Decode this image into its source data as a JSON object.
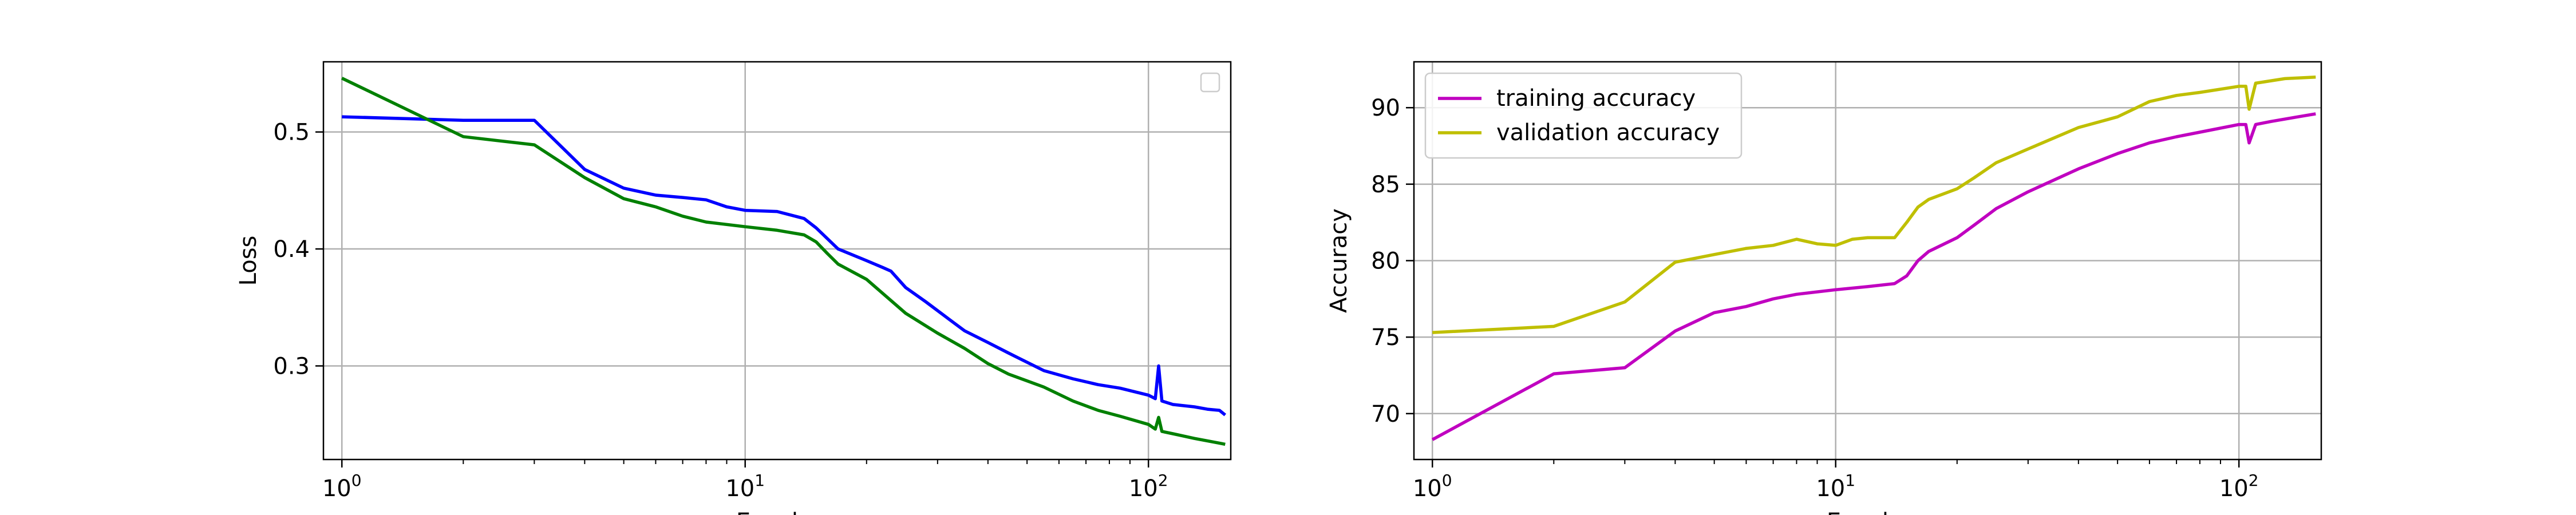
{
  "chart_data": [
    {
      "type": "line",
      "title": "",
      "xlabel": "Epochs",
      "ylabel": "Loss",
      "xscale": "log",
      "xlim": [
        0.9,
        160
      ],
      "ylim": [
        0.22,
        0.56
      ],
      "grid": true,
      "legend": "top-right (empty)",
      "x_ticks": [
        {
          "value": 1,
          "label": "10^0"
        },
        {
          "value": 10,
          "label": "10^1"
        },
        {
          "value": 100,
          "label": "10^2"
        }
      ],
      "y_ticks": [
        {
          "value": 0.3,
          "label": "0.3"
        },
        {
          "value": 0.4,
          "label": "0.4"
        },
        {
          "value": 0.5,
          "label": "0.5"
        }
      ],
      "series": [
        {
          "color": "#0000ff",
          "points": [
            [
              1,
              0.513
            ],
            [
              2,
              0.51
            ],
            [
              3,
              0.51
            ],
            [
              4,
              0.468
            ],
            [
              5,
              0.452
            ],
            [
              6,
              0.446
            ],
            [
              7,
              0.444
            ],
            [
              8,
              0.442
            ],
            [
              9,
              0.436
            ],
            [
              10,
              0.433
            ],
            [
              12,
              0.432
            ],
            [
              14,
              0.426
            ],
            [
              15,
              0.418
            ],
            [
              17,
              0.4
            ],
            [
              20,
              0.39
            ],
            [
              22,
              0.384
            ],
            [
              23,
              0.381
            ],
            [
              25,
              0.367
            ],
            [
              28,
              0.355
            ],
            [
              32,
              0.34
            ],
            [
              35,
              0.33
            ],
            [
              40,
              0.32
            ],
            [
              45,
              0.311
            ],
            [
              55,
              0.296
            ],
            [
              65,
              0.289
            ],
            [
              75,
              0.284
            ],
            [
              85,
              0.281
            ],
            [
              100,
              0.275
            ],
            [
              104,
              0.272
            ],
            [
              106,
              0.3
            ],
            [
              108,
              0.27
            ],
            [
              115,
              0.267
            ],
            [
              130,
              0.265
            ],
            [
              140,
              0.263
            ],
            [
              150,
              0.262
            ],
            [
              155,
              0.258
            ]
          ]
        },
        {
          "color": "#008000",
          "points": [
            [
              1,
              0.546
            ],
            [
              2,
              0.496
            ],
            [
              3,
              0.489
            ],
            [
              4,
              0.461
            ],
            [
              5,
              0.443
            ],
            [
              6,
              0.436
            ],
            [
              7,
              0.428
            ],
            [
              8,
              0.423
            ],
            [
              10,
              0.419
            ],
            [
              12,
              0.416
            ],
            [
              14,
              0.412
            ],
            [
              15,
              0.406
            ],
            [
              16,
              0.396
            ],
            [
              17,
              0.387
            ],
            [
              20,
              0.374
            ],
            [
              25,
              0.345
            ],
            [
              30,
              0.328
            ],
            [
              35,
              0.315
            ],
            [
              40,
              0.302
            ],
            [
              45,
              0.293
            ],
            [
              55,
              0.282
            ],
            [
              65,
              0.27
            ],
            [
              75,
              0.262
            ],
            [
              85,
              0.257
            ],
            [
              100,
              0.25
            ],
            [
              104,
              0.246
            ],
            [
              106,
              0.256
            ],
            [
              108,
              0.244
            ],
            [
              115,
              0.242
            ],
            [
              130,
              0.238
            ],
            [
              150,
              0.234
            ],
            [
              155,
              0.233
            ]
          ]
        }
      ]
    },
    {
      "type": "line",
      "title": "",
      "xlabel": "Epochs",
      "ylabel": "Accuracy",
      "xscale": "log",
      "xlim": [
        0.9,
        160
      ],
      "ylim": [
        67,
        93
      ],
      "grid": true,
      "legend": "top-left",
      "x_ticks": [
        {
          "value": 1,
          "label": "10^0"
        },
        {
          "value": 10,
          "label": "10^1"
        },
        {
          "value": 100,
          "label": "10^2"
        }
      ],
      "y_ticks": [
        {
          "value": 70,
          "label": "70"
        },
        {
          "value": 75,
          "label": "75"
        },
        {
          "value": 80,
          "label": "80"
        },
        {
          "value": 85,
          "label": "85"
        },
        {
          "value": 90,
          "label": "90"
        }
      ],
      "series": [
        {
          "name": "training accuracy",
          "color": "#c000c0",
          "points": [
            [
              1,
              68.3
            ],
            [
              2,
              72.6
            ],
            [
              3,
              73.0
            ],
            [
              4,
              75.4
            ],
            [
              5,
              76.6
            ],
            [
              6,
              77.0
            ],
            [
              7,
              77.5
            ],
            [
              8,
              77.8
            ],
            [
              10,
              78.1
            ],
            [
              12,
              78.3
            ],
            [
              14,
              78.5
            ],
            [
              15,
              79.0
            ],
            [
              16,
              80.0
            ],
            [
              17,
              80.6
            ],
            [
              20,
              81.5
            ],
            [
              22,
              82.3
            ],
            [
              25,
              83.4
            ],
            [
              30,
              84.5
            ],
            [
              40,
              86.0
            ],
            [
              50,
              87.0
            ],
            [
              60,
              87.7
            ],
            [
              70,
              88.1
            ],
            [
              80,
              88.4
            ],
            [
              100,
              88.9
            ],
            [
              104,
              88.9
            ],
            [
              106,
              87.7
            ],
            [
              110,
              88.9
            ],
            [
              120,
              89.1
            ],
            [
              140,
              89.4
            ],
            [
              155,
              89.6
            ]
          ]
        },
        {
          "name": "validation accuracy",
          "color": "#bfbf00",
          "points": [
            [
              1,
              75.3
            ],
            [
              2,
              75.7
            ],
            [
              3,
              77.3
            ],
            [
              4,
              79.9
            ],
            [
              5,
              80.4
            ],
            [
              6,
              80.8
            ],
            [
              7,
              81.0
            ],
            [
              8,
              81.4
            ],
            [
              9,
              81.1
            ],
            [
              10,
              81.0
            ],
            [
              11,
              81.4
            ],
            [
              12,
              81.5
            ],
            [
              14,
              81.5
            ],
            [
              15,
              82.5
            ],
            [
              16,
              83.5
            ],
            [
              17,
              84.0
            ],
            [
              20,
              84.7
            ],
            [
              22,
              85.4
            ],
            [
              25,
              86.4
            ],
            [
              30,
              87.3
            ],
            [
              40,
              88.7
            ],
            [
              50,
              89.4
            ],
            [
              60,
              90.4
            ],
            [
              70,
              90.8
            ],
            [
              80,
              91.0
            ],
            [
              100,
              91.4
            ],
            [
              104,
              91.4
            ],
            [
              106,
              89.9
            ],
            [
              110,
              91.6
            ],
            [
              130,
              91.9
            ],
            [
              155,
              92.0
            ]
          ]
        }
      ]
    }
  ]
}
